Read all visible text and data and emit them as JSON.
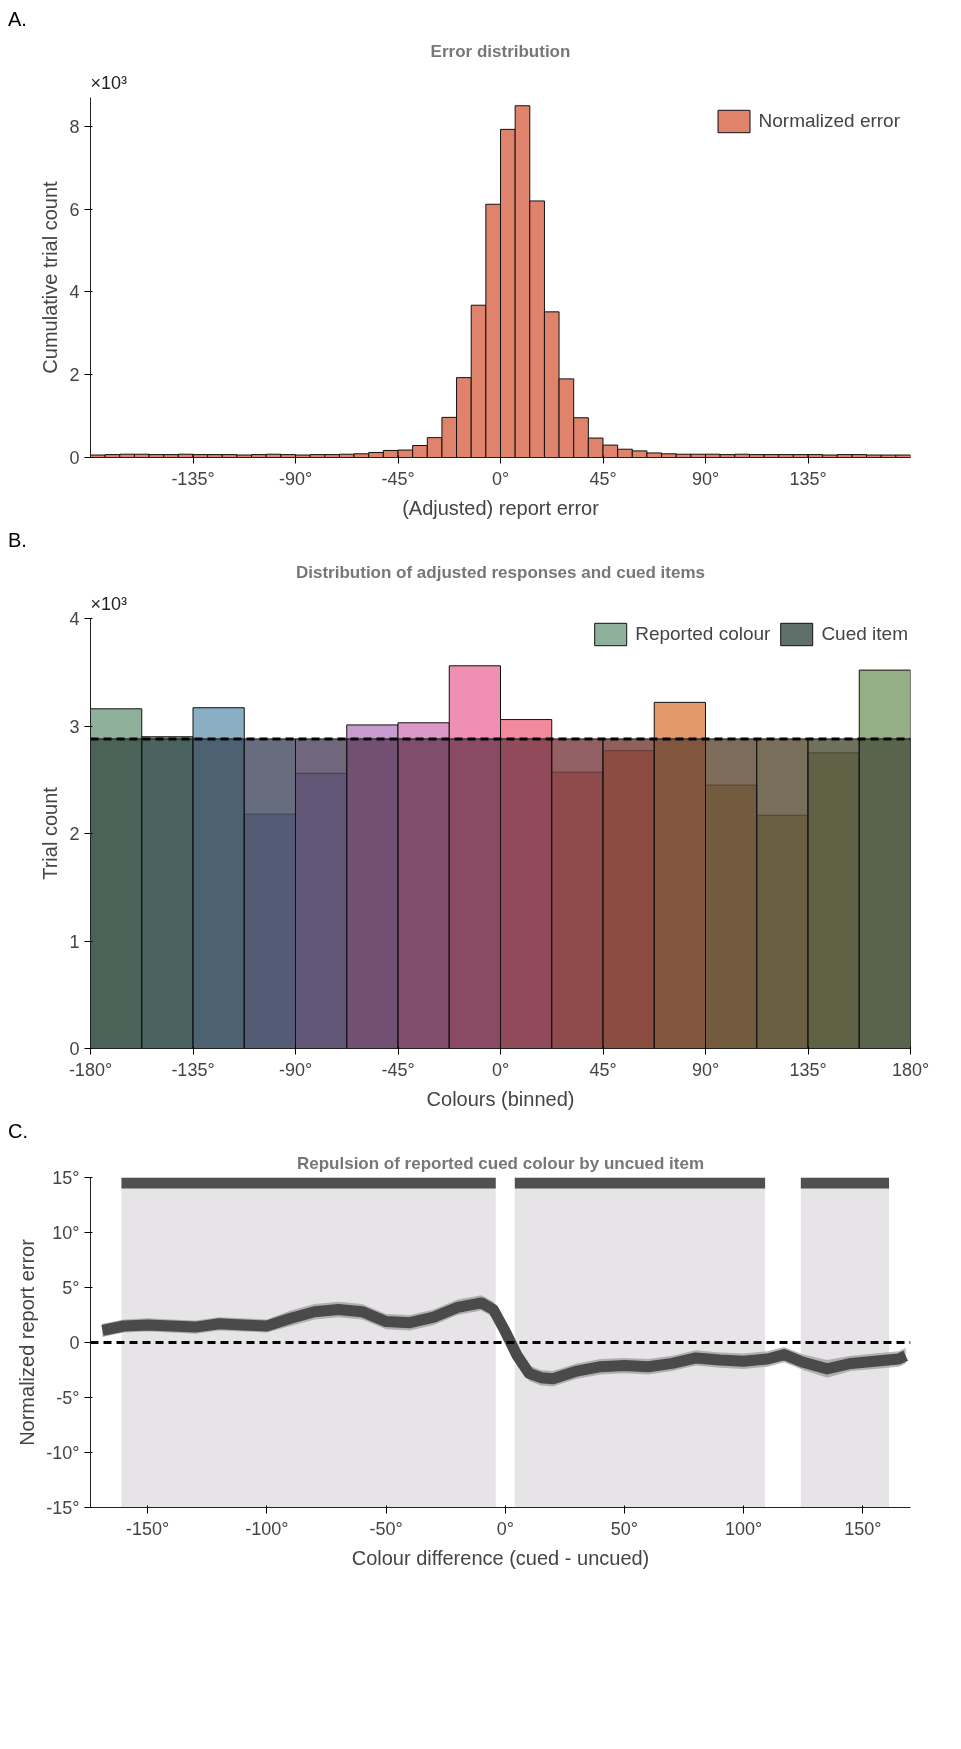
{
  "chart_data": [
    {
      "type": "histogram",
      "title": "Error distribution",
      "xlabel": "(Adjusted) report error",
      "ylabel": "Cumulative trial count",
      "annotations": [
        "A.",
        "×10³"
      ],
      "bins": [
        -180,
        -173.57,
        -167.14,
        -160.71,
        -154.29,
        -147.86,
        -141.43,
        -135,
        -128.57,
        -122.14,
        -115.71,
        -109.29,
        -102.86,
        -96.43,
        -90,
        -83.57,
        -77.14,
        -70.71,
        -64.29,
        -57.86,
        -51.43,
        -45,
        -38.57,
        -32.14,
        -25.71,
        -19.29,
        -12.86,
        -6.43,
        0,
        6.43,
        12.86,
        19.29,
        25.71,
        32.14,
        38.57,
        45,
        51.43,
        57.86,
        64.29,
        70.71,
        77.14,
        83.57,
        90,
        96.43,
        102.86,
        109.29,
        115.71,
        122.14,
        128.57,
        135,
        141.43,
        147.86,
        154.29,
        160.71,
        167.14,
        173.57,
        180
      ],
      "series": [
        {
          "name": "Normalized error",
          "color": "#e0836c",
          "values": [
            0.06,
            0.07,
            0.08,
            0.08,
            0.07,
            0.07,
            0.08,
            0.07,
            0.07,
            0.07,
            0.06,
            0.07,
            0.08,
            0.07,
            0.06,
            0.07,
            0.07,
            0.08,
            0.09,
            0.12,
            0.17,
            0.18,
            0.29,
            0.48,
            0.97,
            1.93,
            3.68,
            6.12,
            7.93,
            8.5,
            6.2,
            3.52,
            1.9,
            0.96,
            0.47,
            0.3,
            0.2,
            0.16,
            0.11,
            0.09,
            0.08,
            0.08,
            0.08,
            0.07,
            0.08,
            0.07,
            0.07,
            0.07,
            0.07,
            0.07,
            0.06,
            0.07,
            0.07,
            0.06,
            0.06,
            0.06
          ]
        }
      ],
      "xlim": [
        -180,
        180
      ],
      "ylim": [
        0,
        8.7
      ],
      "xticks": [
        {
          "value": -135,
          "label": "-135°"
        },
        {
          "value": -90,
          "label": "-90°"
        },
        {
          "value": -45,
          "label": "-45°"
        },
        {
          "value": 0,
          "label": "0°"
        },
        {
          "value": 45,
          "label": "45°"
        },
        {
          "value": 90,
          "label": "90°"
        },
        {
          "value": 135,
          "label": "135°"
        }
      ],
      "yticks": [
        0,
        2,
        4,
        6,
        8
      ],
      "legend": "top right",
      "grid": false
    },
    {
      "type": "histogram",
      "title": "Distribution of adjusted responses and cued items",
      "xlabel": "Colours (binned)",
      "ylabel": "Trial count",
      "annotations": [
        "B.",
        "×10³"
      ],
      "bins": [
        -180,
        -157.5,
        -135,
        -112.5,
        -90,
        -67.5,
        -45,
        -22.5,
        0,
        22.5,
        45,
        67.5,
        90,
        112.5,
        135,
        157.5,
        180
      ],
      "series": [
        {
          "name": "Reported colour",
          "colors": [
            "#8fb09a",
            "#86aaa6",
            "#8aaec4",
            "#96a4cc",
            "#aca0d4",
            "#c99ad0",
            "#dc98c8",
            "#ef8fb4",
            "#f28a9c",
            "#ee8a84",
            "#e8926e",
            "#e29a6a",
            "#c8a070",
            "#b2a676",
            "#a2ab7e",
            "#96ae84"
          ],
          "values": [
            3.16,
            2.9,
            3.17,
            2.18,
            2.56,
            3.01,
            3.03,
            3.56,
            3.06,
            2.57,
            2.77,
            3.22,
            2.45,
            2.17,
            2.75,
            3.52
          ]
        },
        {
          "name": "Cued item",
          "colors": [
            "#3c5049",
            "#3c5250",
            "#3e5060",
            "#454c62",
            "#504560",
            "#5e405e",
            "#6a3e58",
            "#753a50",
            "#7b3c4a",
            "#7a3c40",
            "#763e36",
            "#6c4634",
            "#604c36",
            "#5a5036",
            "#505238",
            "#4a5540"
          ],
          "values": [
            2.88,
            2.88,
            2.88,
            2.88,
            2.88,
            2.88,
            2.88,
            2.88,
            2.88,
            2.88,
            2.88,
            2.88,
            2.88,
            2.88,
            2.88,
            2.88
          ]
        }
      ],
      "ref_lines": [
        {
          "axis": "y",
          "value": 2.88,
          "color": "#000000",
          "line_style": "dashed"
        }
      ],
      "xlim": [
        -180,
        180
      ],
      "ylim": [
        0,
        4
      ],
      "xticks": [
        {
          "value": -180,
          "label": "-180°"
        },
        {
          "value": -135,
          "label": "-135°"
        },
        {
          "value": -90,
          "label": "-90°"
        },
        {
          "value": -45,
          "label": "-45°"
        },
        {
          "value": 0,
          "label": "0°"
        },
        {
          "value": 45,
          "label": "45°"
        },
        {
          "value": 90,
          "label": "90°"
        },
        {
          "value": 135,
          "label": "135°"
        },
        {
          "value": 180,
          "label": "180°"
        }
      ],
      "yticks": [
        0,
        1,
        2,
        3,
        4
      ],
      "legend": "top",
      "grid": false
    },
    {
      "type": "line",
      "title": "Repulsion of reported cued colour by uncued item",
      "xlabel": "Colour difference (cued - uncued)",
      "ylabel": "Normalized report error",
      "annotations": [
        "C."
      ],
      "series": [
        {
          "color": "#4a4a4a",
          "x": [
            -169,
            -160,
            -150,
            -140,
            -130,
            -120,
            -110,
            -100,
            -90,
            -80,
            -70,
            -60,
            -50,
            -40,
            -30,
            -20,
            -10,
            -5,
            0,
            5,
            10,
            15,
            20,
            30,
            40,
            50,
            60,
            70,
            80,
            90,
            100,
            110,
            117,
            125,
            135,
            145,
            155,
            165,
            168
          ],
          "values": [
            1.1,
            1.5,
            1.6,
            1.5,
            1.4,
            1.7,
            1.6,
            1.5,
            2.2,
            2.8,
            3.0,
            2.8,
            1.9,
            1.8,
            2.3,
            3.2,
            3.6,
            3.0,
            1.0,
            -1.2,
            -2.8,
            -3.2,
            -3.3,
            -2.6,
            -2.2,
            -2.1,
            -2.2,
            -1.9,
            -1.4,
            -1.6,
            -1.7,
            -1.5,
            -1.1,
            -1.8,
            -2.4,
            -1.9,
            -1.7,
            -1.5,
            -1.2
          ],
          "lower": [
            0.5,
            0.9,
            1.0,
            0.9,
            0.8,
            1.1,
            1.0,
            0.9,
            1.5,
            2.1,
            2.3,
            2.1,
            1.2,
            1.1,
            1.6,
            2.5,
            2.9,
            2.3,
            0.3,
            -1.9,
            -3.5,
            -3.9,
            -4.0,
            -3.3,
            -2.9,
            -2.8,
            -2.9,
            -2.6,
            -2.1,
            -2.3,
            -2.4,
            -2.2,
            -1.8,
            -2.5,
            -3.2,
            -2.6,
            -2.4,
            -2.2,
            -1.9
          ],
          "upper": [
            1.7,
            2.1,
            2.2,
            2.1,
            2.0,
            2.3,
            2.2,
            2.1,
            2.9,
            3.5,
            3.7,
            3.5,
            2.6,
            2.5,
            3.0,
            3.9,
            4.3,
            3.7,
            1.7,
            -0.5,
            -2.1,
            -2.5,
            -2.6,
            -1.9,
            -1.5,
            -1.4,
            -1.5,
            -1.2,
            -0.7,
            -0.9,
            -1.0,
            -0.8,
            -0.4,
            -1.1,
            -1.6,
            -1.2,
            -1.0,
            -0.8,
            -0.5
          ]
        },
        {
          "color": "#505050",
          "x": [
            -161,
            -4
          ],
          "values": [
            14.5,
            14.5
          ]
        },
        {
          "color": "#505050",
          "x": [
            4,
            109
          ],
          "values": [
            14.5,
            14.5
          ]
        },
        {
          "color": "#505050",
          "x": [
            124,
            161
          ],
          "values": [
            14.5,
            14.5
          ]
        }
      ],
      "bands": [
        {
          "axis": "x",
          "from": -161,
          "to": -4,
          "color": "#e6e4e6"
        },
        {
          "axis": "x",
          "from": 4,
          "to": 109,
          "color": "#e6e4e6"
        },
        {
          "axis": "x",
          "from": 124,
          "to": 161,
          "color": "#e6e4e6"
        }
      ],
      "ref_lines": [
        {
          "axis": "y",
          "value": 0,
          "color": "#000000",
          "line_style": "dashed"
        }
      ],
      "xlim": [
        -174,
        170
      ],
      "ylim": [
        -15,
        15
      ],
      "xticks": [
        {
          "value": -150,
          "label": "-150°"
        },
        {
          "value": -100,
          "label": "-100°"
        },
        {
          "value": -50,
          "label": "-50°"
        },
        {
          "value": 0,
          "label": "0°"
        },
        {
          "value": 50,
          "label": "50°"
        },
        {
          "value": 100,
          "label": "100°"
        },
        {
          "value": 150,
          "label": "150°"
        }
      ],
      "yticks": [
        {
          "value": -15,
          "label": "-15°"
        },
        {
          "value": -10,
          "label": "-10°"
        },
        {
          "value": -5,
          "label": "-5°"
        },
        {
          "value": 0,
          "label": "0"
        },
        {
          "value": 5,
          "label": "5°"
        },
        {
          "value": 10,
          "label": "10°"
        },
        {
          "value": 15,
          "label": "15°"
        }
      ],
      "line_style": "solid",
      "grid": false
    }
  ]
}
